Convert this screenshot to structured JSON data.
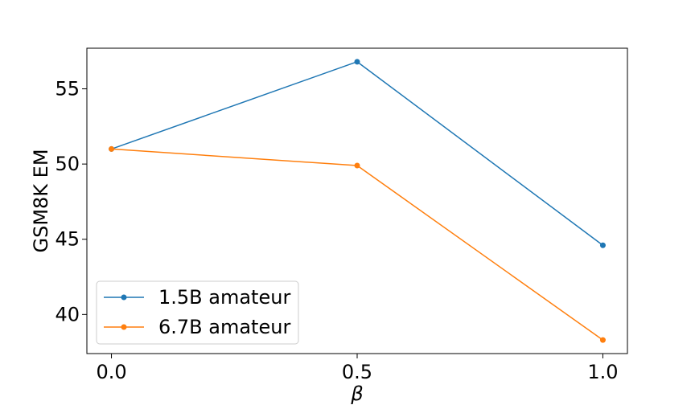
{
  "chart_data": {
    "type": "line",
    "xlabel": "β",
    "ylabel": "GSM8K EM",
    "x": [
      0.0,
      0.5,
      1.0
    ],
    "xticks": [
      0.0,
      0.5,
      1.0
    ],
    "xtick_labels": [
      "0.0",
      "0.5",
      "1.0"
    ],
    "yticks": [
      40,
      45,
      50,
      55
    ],
    "ytick_labels": [
      "40",
      "45",
      "50",
      "55"
    ],
    "xlim": [
      -0.05,
      1.05
    ],
    "ylim": [
      37.4,
      57.7
    ],
    "grid": false,
    "legend_position": "lower-left",
    "series": [
      {
        "name": "1.5B amateur",
        "color": "#1f77b4",
        "marker": "circle",
        "values": [
          51.0,
          56.8,
          44.6
        ]
      },
      {
        "name": "6.7B amateur",
        "color": "#ff7f0e",
        "marker": "circle",
        "values": [
          51.0,
          49.9,
          38.3
        ]
      }
    ]
  }
}
